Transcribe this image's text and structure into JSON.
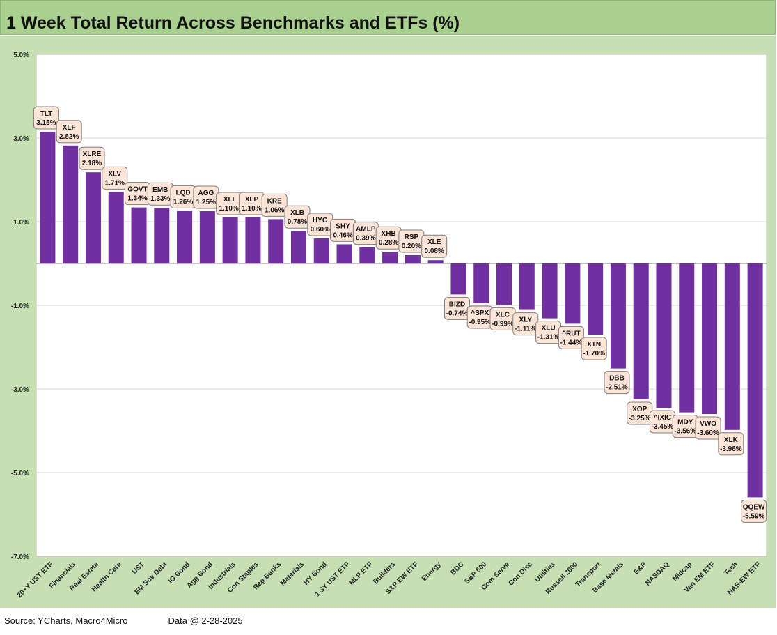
{
  "title": "1 Week Total Return Across Benchmarks and ETFs (%)",
  "footer": {
    "source": "Source: YCharts, Macro4Micro",
    "date": "Data @ 2-28-2025"
  },
  "colors": {
    "title_bg": "#a9d08e",
    "panel_bg": "#c6e0b4",
    "bar": "#7030a0",
    "label_bg": "#fce4d6"
  },
  "chart_data": {
    "type": "bar",
    "ylim": [
      -7,
      5
    ],
    "yticks": [
      5,
      3,
      1,
      -1,
      -3,
      -5,
      -7
    ],
    "ytick_labels": [
      "5.0%",
      "3.0%",
      "1.0%",
      "-1.0%",
      "-3.0%",
      "-5.0%",
      "-7.0%"
    ],
    "grid": true,
    "categories": [
      "20+Y UST ETF",
      "Financials",
      "Real Estate",
      "Health Care",
      "UST",
      "EM Sov Debt",
      "IG Bond",
      "Agg Bond",
      "Industrials",
      "Con Staples",
      "Reg Banks",
      "Materials",
      "HY Bond",
      "1-3Y UST ETF",
      "MLP ETF",
      "Builders",
      "S&P EW ETF",
      "Energy",
      "BDC",
      "S&P 500",
      "Com Serve",
      "Con Disc",
      "Utilities",
      "Russell 2000",
      "Transport",
      "Base Metals",
      "E&P",
      "NASDAQ",
      "Midcap",
      "Van EM ETF",
      "Tech",
      "NAS-EW ETF"
    ],
    "tickers": [
      "TLT",
      "XLF",
      "XLRE",
      "XLV",
      "GOVT",
      "EMB",
      "LQD",
      "AGG",
      "XLI",
      "XLP",
      "KRE",
      "XLB",
      "HYG",
      "SHY",
      "AMLP",
      "XHB",
      "RSP",
      "XLE",
      "BIZD",
      "^SPX",
      "XLC",
      "XLY",
      "XLU",
      "^RUT",
      "XTN",
      "DBB",
      "XOP",
      "^IXIC",
      "MDY",
      "VWO",
      "XLK",
      "QQEW"
    ],
    "values": [
      3.15,
      2.82,
      2.18,
      1.71,
      1.34,
      1.33,
      1.26,
      1.25,
      1.1,
      1.1,
      1.06,
      0.78,
      0.6,
      0.46,
      0.39,
      0.28,
      0.2,
      0.08,
      -0.74,
      -0.95,
      -0.99,
      -1.11,
      -1.31,
      -1.44,
      -1.7,
      -2.51,
      -3.25,
      -3.45,
      -3.56,
      -3.6,
      -3.98,
      -5.59
    ],
    "value_labels": [
      "3.15%",
      "2.82%",
      "2.18%",
      "1.71%",
      "1.34%",
      "1.33%",
      "1.26%",
      "1.25%",
      "1.10%",
      "1.10%",
      "1.06%",
      "0.78%",
      "0.60%",
      "0.46%",
      "0.39%",
      "0.28%",
      "0.20%",
      "0.08%",
      "-0.74%",
      "-0.95%",
      "-0.99%",
      "-1.11%",
      "-1.31%",
      "-1.44%",
      "-1.70%",
      "-2.51%",
      "-3.25%",
      "-3.45%",
      "-3.56%",
      "-3.60%",
      "-3.98%",
      "-5.59%"
    ]
  }
}
